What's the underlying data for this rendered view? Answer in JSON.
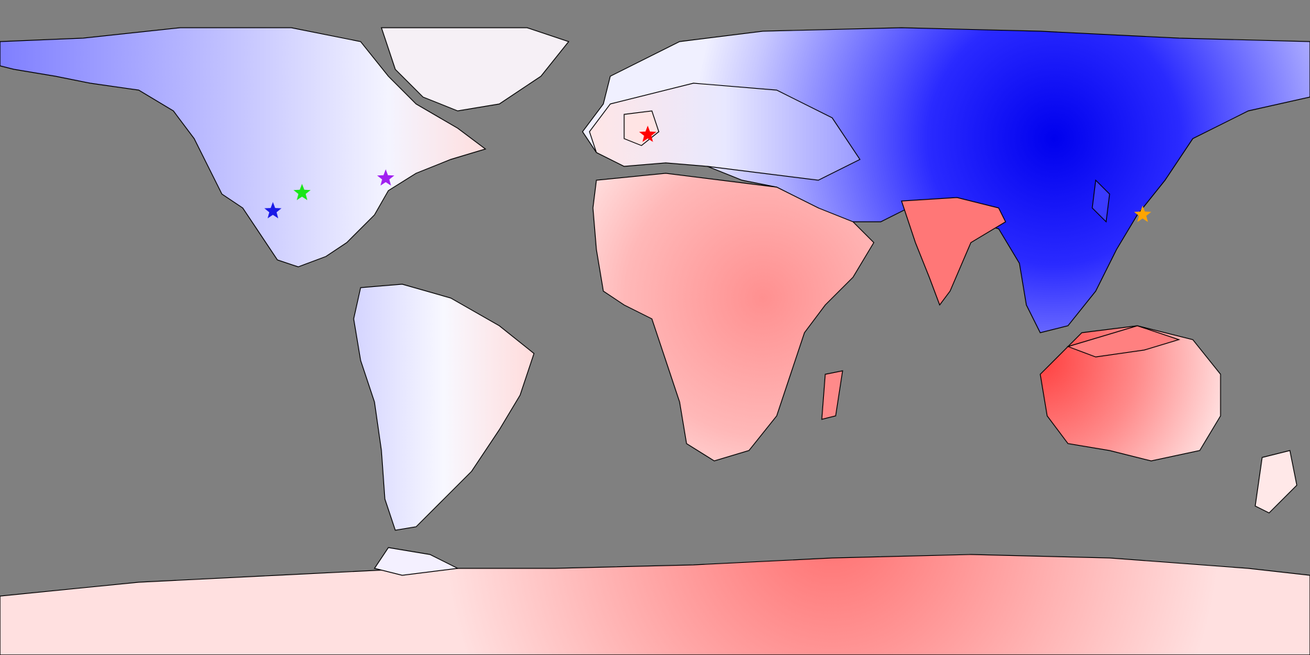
{
  "map": {
    "projection": "equirectangular",
    "extent": {
      "lon": [
        -180,
        180
      ],
      "lat": [
        -90,
        90
      ]
    },
    "ocean_color": "#808080",
    "coastline_color": "#000000",
    "color_scale": {
      "cold": "#0000ff",
      "neutral": "#ffffff",
      "warm": "#ff3333"
    }
  },
  "markers": [
    {
      "id": "marker-blue-star",
      "icon": "star-icon",
      "color": "#1a1ae6",
      "lon": -105,
      "lat": 32
    },
    {
      "id": "marker-green-star",
      "icon": "star-icon",
      "color": "#19e619",
      "lon": -97,
      "lat": 37
    },
    {
      "id": "marker-purple-star",
      "icon": "star-icon",
      "color": "#a020f0",
      "lon": -74,
      "lat": 41
    },
    {
      "id": "marker-red-star",
      "icon": "star-icon",
      "color": "#ff0000",
      "lon": -2,
      "lat": 53
    },
    {
      "id": "marker-orange-star",
      "icon": "star-icon",
      "color": "#ffa500",
      "lon": 134,
      "lat": 31
    }
  ]
}
